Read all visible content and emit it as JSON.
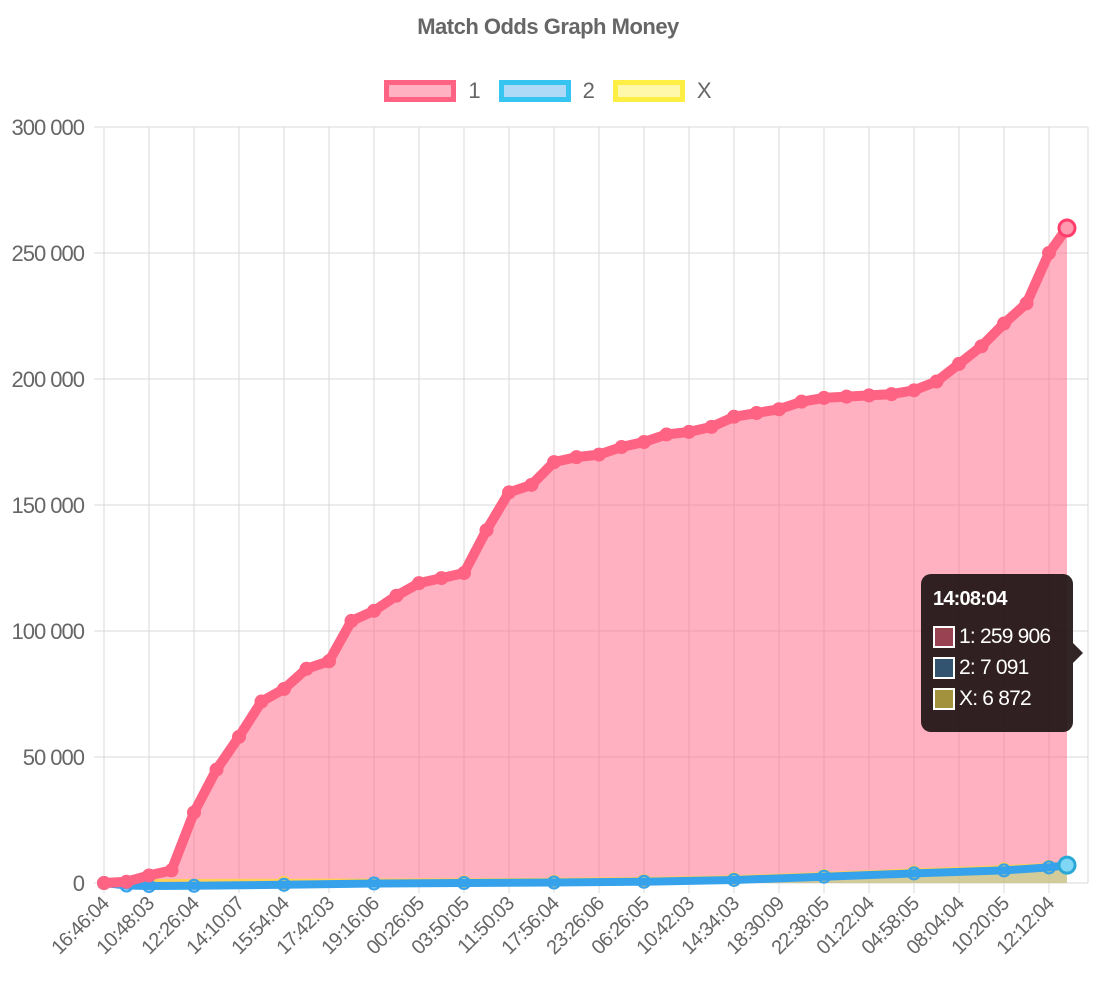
{
  "chart_data": {
    "type": "area",
    "title": "Match Odds Graph Money",
    "xlabel": "",
    "ylabel": "",
    "ylim": [
      0,
      300000
    ],
    "yticks": [
      "300 000",
      "250 000",
      "200 000",
      "150 000",
      "100 000",
      "50 000",
      "0"
    ],
    "yticks_values": [
      300000,
      250000,
      200000,
      150000,
      100000,
      50000,
      0
    ],
    "xtick_labels": [
      "16:46:04",
      "10:48:03",
      "12:26:04",
      "14:10:07",
      "15:54:04",
      "17:42:03",
      "19:16:06",
      "00:26:05",
      "03:50:05",
      "11:50:03",
      "17:56:04",
      "23:26:06",
      "06:26:05",
      "10:42:03",
      "14:34:03",
      "18:30:09",
      "22:38:05",
      "01:22:04",
      "04:58:05",
      "08:04:04",
      "10:20:05",
      "12:12:04"
    ],
    "grid": true,
    "legend_position": "top",
    "series": [
      {
        "name": "1",
        "color": "#ff6384",
        "fill": "rgba(255,99,132,0.5)",
        "x": [
          0,
          0.5,
          1,
          1.5,
          2,
          2.5,
          3,
          3.5,
          4,
          4.5,
          5,
          5.5,
          6,
          6.5,
          7,
          7.5,
          8,
          8.5,
          9,
          9.5,
          10,
          10.5,
          11,
          11.5,
          12,
          12.5,
          13,
          13.5,
          14,
          14.5,
          15,
          15.5,
          16,
          16.5,
          17,
          17.5,
          18,
          18.5,
          19,
          19.5,
          20,
          20.5,
          21,
          21.4
        ],
        "values": [
          0,
          500,
          3000,
          5000,
          28000,
          45000,
          58000,
          72000,
          77000,
          85000,
          88000,
          104000,
          108000,
          114000,
          119000,
          121000,
          123000,
          140000,
          155000,
          158000,
          167000,
          169000,
          170000,
          173000,
          175000,
          178000,
          179000,
          181000,
          185000,
          186500,
          188000,
          191000,
          192500,
          193000,
          193500,
          194000,
          195500,
          199000,
          206000,
          213000,
          222000,
          230000,
          250000,
          259906
        ]
      },
      {
        "name": "2",
        "color": "#36a2eb",
        "fill": "rgba(54,162,235,0.4)",
        "x": [
          0,
          0.5,
          1,
          2,
          4,
          6,
          8,
          10,
          12,
          14,
          16,
          18,
          20,
          21,
          21.4
        ],
        "values": [
          0,
          -1000,
          -1200,
          -1100,
          -700,
          -200,
          0,
          200,
          500,
          1200,
          2500,
          3800,
          5000,
          6200,
          7091
        ]
      },
      {
        "name": "X",
        "color": "#ffce56",
        "fill": "rgba(255,241,86,0.45)",
        "x": [
          0,
          1,
          4,
          8,
          10,
          12,
          14,
          16,
          18,
          20,
          21,
          21.4
        ],
        "values": [
          0,
          0,
          100,
          300,
          500,
          800,
          1500,
          2800,
          4200,
          5500,
          6400,
          6872
        ]
      }
    ]
  },
  "tooltip": {
    "title": "14:08:04",
    "rows": [
      {
        "label": "1: 259 906",
        "color": "rgba(255,99,132,0.5)"
      },
      {
        "label": "2: 7 091",
        "color": "rgba(54,162,235,0.4)"
      },
      {
        "label": "X: 6 872",
        "color": "rgba(255,241,86,0.55)"
      }
    ]
  },
  "legend": [
    {
      "label": "1",
      "border": "#ff6384",
      "fill": "rgba(255,99,132,0.5)"
    },
    {
      "label": "2",
      "border": "#36c5f0",
      "fill": "rgba(54,162,235,0.4)"
    },
    {
      "label": "X",
      "border": "#ffee44",
      "fill": "rgba(255,241,86,0.5)"
    }
  ]
}
